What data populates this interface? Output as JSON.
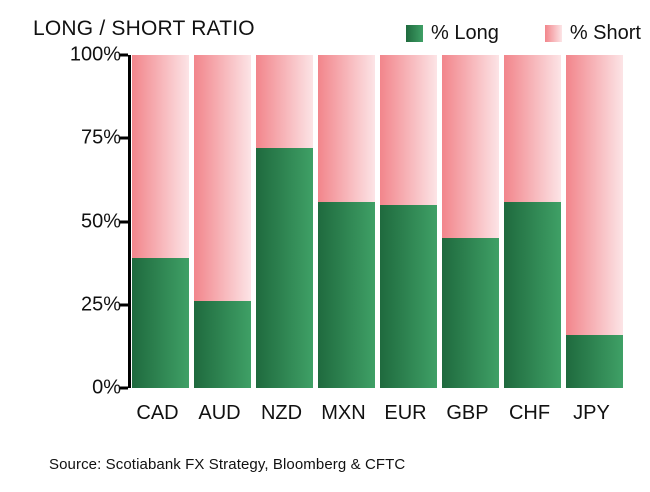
{
  "title": "LONG / SHORT RATIO",
  "legend": {
    "long_label": "% Long",
    "short_label": "% Short"
  },
  "y_axis": {
    "ticks": [
      "100%",
      "75%",
      "50%",
      "25%",
      "0%"
    ]
  },
  "source": "Source: Scotiabank FX Strategy, Bloomberg & CFTC",
  "colors": {
    "long_gradient_left": "#1F6A3E",
    "long_gradient_right": "#3FA066",
    "short_gradient_left": "#F2858B",
    "short_gradient_right": "#FCE4E6",
    "axis": "#000000",
    "text": "#111111"
  },
  "chart_data": {
    "type": "bar",
    "subtype": "stacked-100-percent",
    "title": "LONG / SHORT RATIO",
    "categories": [
      "CAD",
      "AUD",
      "NZD",
      "MXN",
      "EUR",
      "GBP",
      "CHF",
      "JPY"
    ],
    "series": [
      {
        "name": "% Long",
        "values": [
          39,
          26,
          72,
          56,
          55,
          45,
          56,
          16
        ]
      },
      {
        "name": "% Short",
        "values": [
          61,
          74,
          28,
          44,
          45,
          55,
          44,
          84
        ]
      }
    ],
    "xlabel": "",
    "ylabel": "",
    "ylim": [
      0,
      100
    ],
    "y_tick_labels": [
      "0%",
      "25%",
      "50%",
      "75%",
      "100%"
    ],
    "grid": false,
    "legend_position": "top-right"
  }
}
